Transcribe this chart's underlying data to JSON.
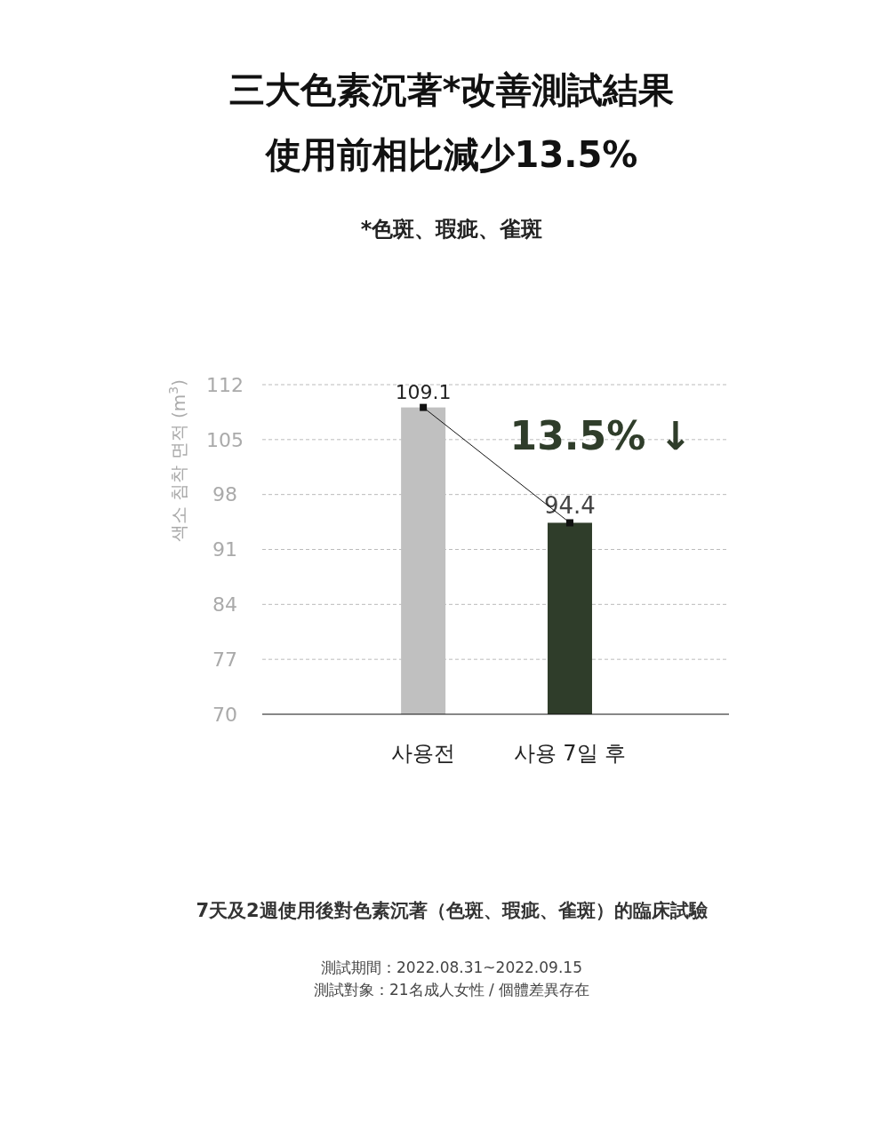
{
  "chart_data": {
    "type": "bar",
    "title": "三大色素沉著*改善測試結果",
    "subtitle": "使用前相比減少13.5%",
    "ylabel": "색소 침착 면적 (m$^{3}$)",
    "categories": [
      "사용전",
      "사용 7일 후"
    ],
    "series": [
      {
        "colors": [
          "#c0c0c0",
          "#2f3d2a"
        ],
        "values": [
          109.1,
          94.4
        ],
        "value_labels": [
          "109.1",
          "94.4"
        ]
      },
      {
        "type": "line",
        "color": "#111111",
        "marker": "square",
        "values": [
          109.1,
          94.4
        ]
      }
    ],
    "ylim": [
      70,
      112
    ],
    "yticks": [
      70,
      77,
      84,
      91,
      98,
      105,
      112
    ],
    "grid": "y",
    "annotations": [
      "*色斑、瑕疵、雀斑",
      "13.5% ↓",
      "7天及2週使用後對色素沉著（色斑、瑕疵、雀斑）的臨床試驗",
      "測試期間：2022.08.31~2022.09.15",
      "測試對象：21名成人女性 / 個體差異存在"
    ]
  }
}
